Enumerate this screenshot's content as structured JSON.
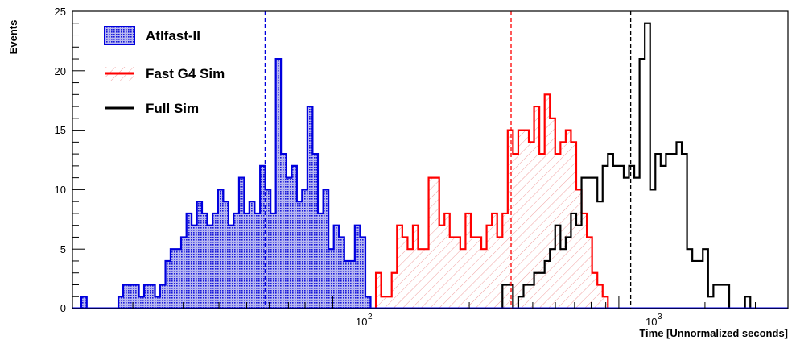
{
  "chart_data": {
    "type": "histogram",
    "xlabel": "Time [Unnormalized seconds]",
    "ylabel": "Events",
    "xscale": "log",
    "xlim": [
      12.3,
      3900
    ],
    "ylim": [
      0,
      25
    ],
    "x_tick_labels": [
      "10",
      "2",
      "10",
      "3"
    ],
    "y_ticks": [
      0,
      5,
      10,
      15,
      20,
      25
    ],
    "legend_position": "top-left",
    "series": [
      {
        "name": "Atlfast-II",
        "color": "#0000dd",
        "fill": "crosshatch",
        "mean": 58,
        "bin_edges": [
          12.7,
          13.2,
          13.8,
          14.4,
          15.0,
          15.7,
          16.3,
          17.0,
          17.8,
          18.5,
          19.3,
          20.1,
          21.0,
          21.9,
          22.9,
          23.9,
          24.9,
          26.0,
          27.1,
          28.3,
          29.5,
          30.8,
          32.1,
          33.5,
          34.9,
          36.4,
          38.0,
          39.7,
          41.4,
          43.2,
          45.0,
          47.0,
          49.0,
          51.1,
          53.3,
          55.7,
          58.1,
          60.6,
          63.2,
          65.9,
          68.8,
          71.8,
          74.9,
          78.1,
          81.5,
          85.0,
          88.7,
          92.6,
          96.6,
          100.8,
          105.1,
          109.7,
          114.5,
          119.4,
          124.6,
          130.0,
          135.6,
          141.5
        ],
        "counts": [
          0,
          1,
          0,
          0,
          0,
          0,
          0,
          0,
          1,
          2,
          2,
          2,
          1,
          2,
          2,
          1,
          2,
          4,
          5,
          5,
          6,
          8,
          7,
          9,
          8,
          7,
          8,
          10,
          9,
          7,
          8,
          11,
          8,
          9,
          8,
          12,
          10,
          8,
          21,
          13,
          11,
          12,
          9,
          10,
          17,
          13,
          8,
          10,
          5,
          7,
          6,
          4,
          4,
          7,
          6,
          1,
          0
        ]
      },
      {
        "name": "Fast G4 Sim",
        "color": "#ff0000",
        "fill": "hatch",
        "mean": 420,
        "bin_edges": [
          141.5,
          147.6,
          154.0,
          160.7,
          167.7,
          175.0,
          182.6,
          190.5,
          198.7,
          207.3,
          216.3,
          225.7,
          235.5,
          245.7,
          256.3,
          267.4,
          279.0,
          291.1,
          303.7,
          316.9,
          330.6,
          344.9,
          359.9,
          375.5,
          391.8,
          408.8,
          426.5,
          445.0,
          464.3,
          484.4,
          505.4,
          527.3,
          550.2,
          574.0,
          598.9,
          624.9,
          652.0,
          680.2,
          709.7,
          740.5,
          772.6,
          806.1,
          841.1,
          877.5,
          915.6,
          955.3,
          996.7
        ],
        "counts": [
          3,
          1,
          1,
          3,
          7,
          6,
          5,
          7,
          5,
          5,
          11,
          11,
          7,
          8,
          6,
          6,
          5,
          8,
          6,
          6,
          5,
          7,
          8,
          6,
          8,
          15,
          13,
          15,
          15,
          14,
          17,
          13,
          18,
          16,
          13,
          14,
          15,
          14,
          10,
          8,
          6,
          3,
          2,
          1,
          0,
          0
        ]
      },
      {
        "name": "Full Sim",
        "color": "#000000",
        "fill": "none",
        "mean": 1100,
        "bin_edges": [
          330.6,
          344.9,
          359.9,
          375.5,
          391.8,
          408.8,
          426.5,
          445.0,
          464.3,
          484.4,
          505.4,
          527.3,
          550.2,
          574.0,
          598.9,
          624.9,
          652.0,
          680.2,
          709.7,
          740.5,
          772.6,
          806.1,
          841.1,
          877.5,
          915.6,
          955.3,
          996.7,
          1040.0,
          1085.1,
          1132.1,
          1181.2,
          1232.4,
          1285.8,
          1341.6,
          1399.8,
          1460.5,
          1523.8,
          1589.9,
          1658.9,
          1730.8,
          1805.9,
          1884.2,
          1965.9,
          2051.2,
          2140.2,
          2233.0,
          2329.8,
          2430.9,
          2536.3,
          2646.3,
          2761.1,
          2880.8,
          3005.8,
          3136.1,
          3272.1,
          3414.1,
          3562.1,
          3716.6,
          3877.8
        ],
        "counts": [
          0,
          0,
          0,
          0,
          2,
          2,
          0,
          1,
          2,
          2,
          3,
          3,
          4,
          5,
          7,
          5,
          6,
          8,
          7,
          11,
          11,
          11,
          9,
          12,
          13,
          12,
          12,
          11,
          12,
          11,
          21,
          24,
          10,
          13,
          12,
          13,
          13,
          14,
          13,
          5,
          4,
          4,
          5,
          1,
          2,
          2,
          2,
          0,
          0,
          0,
          1,
          0,
          0,
          0,
          0,
          0,
          0,
          0
        ]
      }
    ]
  }
}
